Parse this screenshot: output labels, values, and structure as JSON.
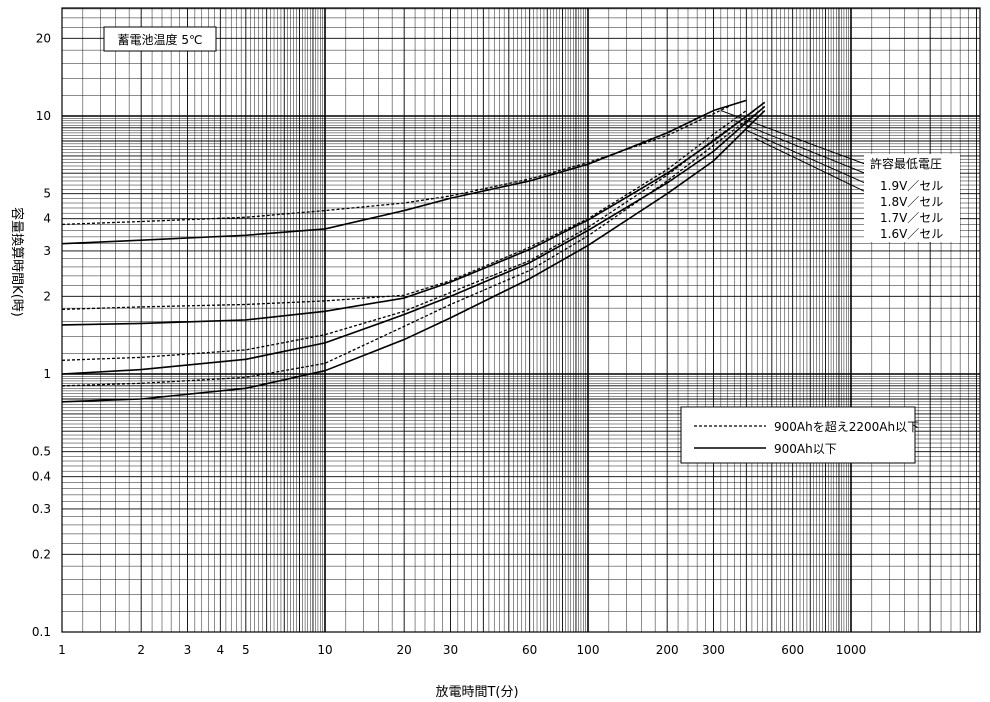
{
  "chart_data": {
    "type": "line",
    "title": "",
    "xlabel": "放電時間T(分)",
    "ylabel": "容量換算時間K(時)",
    "x_scale": "log",
    "y_scale": "log",
    "xlim": [
      1,
      3000
    ],
    "ylim": [
      0.1,
      30
    ],
    "grid": true,
    "x_ticks": [
      1,
      2,
      3,
      4,
      5,
      10,
      20,
      30,
      60,
      100,
      200,
      300,
      600,
      1000
    ],
    "x_tick_labels": [
      "1",
      "2",
      "3",
      "4",
      "5",
      "10",
      "20",
      "30",
      "60",
      "100",
      "200",
      "300",
      "600",
      "1000"
    ],
    "y_ticks": [
      0.1,
      0.2,
      0.3,
      0.4,
      0.5,
      1,
      2,
      3,
      4,
      5,
      10,
      20
    ],
    "y_tick_labels": [
      "0.1",
      "0.2",
      "0.3",
      "0.4",
      "0.5",
      "1",
      "2",
      "3",
      "4",
      "5",
      "10",
      "20"
    ],
    "temperature_box": "蓄電池温度 5℃",
    "voltage_label": {
      "heading": "許容最低電圧",
      "items": [
        "1.9V／セル",
        "1.8V／セル",
        "1.7V／セル",
        "1.6V／セル"
      ]
    },
    "legend": {
      "position": "lower-right",
      "entries": [
        {
          "style": "dashed",
          "label": "900Ahを超え2200Ah以下"
        },
        {
          "style": "solid",
          "label": "900Ah以下"
        }
      ]
    },
    "series": [
      {
        "voltage": "1.9V／セル",
        "style": "dashed",
        "x": [
          1,
          2,
          5,
          10,
          20,
          30,
          60,
          100,
          200,
          300,
          350
        ],
        "y": [
          3.8,
          3.9,
          4.05,
          4.3,
          4.6,
          4.9,
          5.7,
          6.6,
          8.4,
          10.2,
          11.0
        ]
      },
      {
        "voltage": "1.8V／セル",
        "style": "dashed",
        "x": [
          1,
          2,
          5,
          10,
          20,
          30,
          60,
          100,
          200,
          300,
          400
        ],
        "y": [
          1.78,
          1.82,
          1.86,
          1.92,
          2.02,
          2.3,
          3.1,
          4.0,
          6.2,
          8.5,
          10.5
        ]
      },
      {
        "voltage": "1.7V／セル",
        "style": "dashed",
        "x": [
          1,
          2,
          5,
          10,
          20,
          30,
          60,
          100,
          200,
          300,
          430
        ],
        "y": [
          1.13,
          1.16,
          1.24,
          1.42,
          1.75,
          2.07,
          2.75,
          3.7,
          5.9,
          8.1,
          10.5
        ]
      },
      {
        "voltage": "1.6V／セル",
        "style": "dashed",
        "x": [
          1,
          2,
          5,
          10,
          20,
          30,
          60,
          100,
          200,
          300,
          450
        ],
        "y": [
          0.9,
          0.92,
          0.97,
          1.1,
          1.53,
          1.86,
          2.52,
          3.43,
          5.6,
          7.7,
          10.5
        ]
      },
      {
        "voltage": "1.9V／セル",
        "style": "solid",
        "x": [
          1,
          2,
          5,
          10,
          20,
          30,
          60,
          100,
          200,
          300,
          400
        ],
        "y": [
          3.2,
          3.3,
          3.45,
          3.65,
          4.3,
          4.8,
          5.6,
          6.5,
          8.6,
          10.5,
          11.5
        ]
      },
      {
        "voltage": "1.8V／セル",
        "style": "solid",
        "x": [
          1,
          2,
          5,
          10,
          20,
          30,
          60,
          100,
          200,
          300,
          470
        ],
        "y": [
          1.55,
          1.57,
          1.62,
          1.75,
          1.97,
          2.27,
          3.04,
          3.95,
          6.0,
          8.0,
          11.3
        ]
      },
      {
        "voltage": "1.7V／セル",
        "style": "solid",
        "x": [
          1,
          2,
          5,
          10,
          20,
          30,
          60,
          100,
          200,
          300,
          470
        ],
        "y": [
          1.0,
          1.04,
          1.14,
          1.32,
          1.7,
          2.0,
          2.7,
          3.6,
          5.5,
          7.3,
          10.9
        ]
      },
      {
        "voltage": "1.6V／セル",
        "style": "solid",
        "x": [
          1,
          2,
          5,
          10,
          20,
          30,
          60,
          100,
          200,
          300,
          470
        ],
        "y": [
          0.78,
          0.8,
          0.88,
          1.03,
          1.36,
          1.65,
          2.34,
          3.15,
          5.0,
          6.7,
          10.5
        ]
      }
    ],
    "voltage_leaders": [
      {
        "voltage": "1.9V／セル",
        "x": [
          320,
          2050
        ],
        "y": [
          10.5,
          5.2
        ]
      },
      {
        "voltage": "1.8V／セル",
        "x": [
          360,
          2050
        ],
        "y": [
          9.6,
          4.7
        ]
      },
      {
        "voltage": "1.7V／セル",
        "x": [
          400,
          2050
        ],
        "y": [
          8.8,
          4.2
        ]
      },
      {
        "voltage": "1.6V／セル",
        "x": [
          430,
          2050
        ],
        "y": [
          8.2,
          3.8
        ]
      }
    ]
  }
}
